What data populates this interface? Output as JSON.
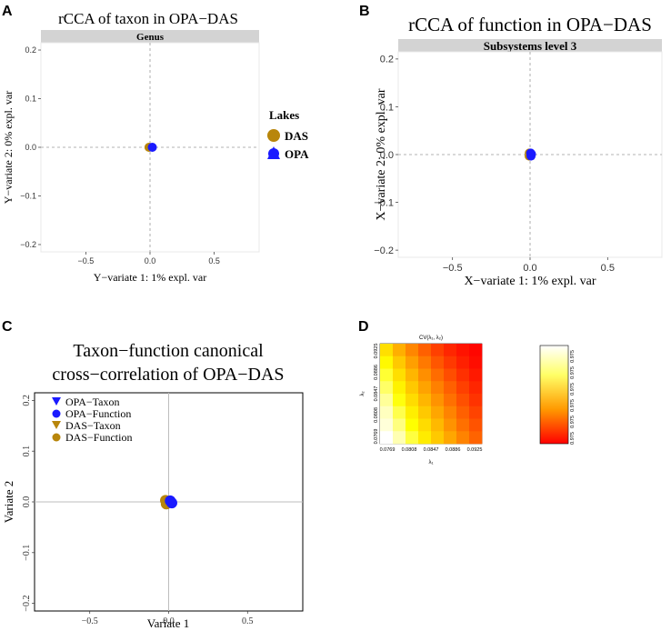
{
  "panels": [
    {
      "letter": "A",
      "type": "scatter",
      "title": "rCCA of taxon in OPA−DAS",
      "strip": "Genus",
      "xlabel": "Y−variate 1: 1% expl. var",
      "ylabel": "Y−variate 2: 0% expl. var",
      "xlim": [
        -0.85,
        0.85
      ],
      "ylim": [
        -0.215,
        0.215
      ],
      "xticks": [
        {
          "v": -0.5,
          "t": "−0.5"
        },
        {
          "v": 0,
          "t": "0.0"
        },
        {
          "v": 0.5,
          "t": "0.5"
        }
      ],
      "yticks": [
        {
          "v": 0.2,
          "t": "0.2"
        },
        {
          "v": 0.1,
          "t": "0.1"
        },
        {
          "v": 0,
          "t": "0.0"
        },
        {
          "v": -0.1,
          "t": "−0.1"
        },
        {
          "v": -0.2,
          "t": "−0.2"
        }
      ],
      "points": [
        {
          "x": -0.008,
          "y": 0.0,
          "series": "DAS",
          "shape": "circle"
        },
        {
          "x": 0.018,
          "y": 0.0,
          "series": "OPA",
          "shape": "circle"
        }
      ],
      "legend": {
        "title": "Lakes",
        "items": [
          {
            "label": "DAS",
            "shape": "circle",
            "color": "#b8860b"
          },
          {
            "label": "OPA",
            "shape": "triangle",
            "color": "#1a1aff"
          }
        ]
      }
    },
    {
      "letter": "B",
      "type": "scatter",
      "title": "rCCA of function in OPA−DAS",
      "strip": "Subsystems level 3",
      "xlabel": "X−variate 1: 1% expl. var",
      "ylabel": "X−variate 2: 0% expl. var",
      "xlim": [
        -0.85,
        0.85
      ],
      "ylim": [
        -0.215,
        0.215
      ],
      "xticks": [
        {
          "v": -0.5,
          "t": "−0.5"
        },
        {
          "v": 0,
          "t": "0.0"
        },
        {
          "v": 0.5,
          "t": "0.5"
        }
      ],
      "yticks": [
        {
          "v": 0.2,
          "t": "0.2"
        },
        {
          "v": 0.1,
          "t": "0.1"
        },
        {
          "v": 0,
          "t": "0.0"
        },
        {
          "v": -0.1,
          "t": "−0.1"
        },
        {
          "v": -0.2,
          "t": "−0.2"
        }
      ],
      "points": [
        {
          "x": -0.005,
          "y": 0.003,
          "series": "DAS",
          "shape": "circle"
        },
        {
          "x": -0.006,
          "y": -0.003,
          "series": "DAS",
          "shape": "circle"
        },
        {
          "x": -0.003,
          "y": 0.0,
          "series": "DAS",
          "shape": "circle"
        },
        {
          "x": 0.004,
          "y": 0.003,
          "series": "OPA",
          "shape": "circle"
        },
        {
          "x": 0.006,
          "y": -0.003,
          "series": "OPA",
          "shape": "circle"
        },
        {
          "x": 0.009,
          "y": 0.001,
          "series": "OPA",
          "shape": "circle"
        }
      ]
    },
    {
      "letter": "C",
      "type": "scatter",
      "title": "Taxon−function canonical",
      "title2": "cross−correlation of OPA−DAS",
      "xlabel": "Variate 1",
      "ylabel": "Variate 2",
      "xlim": [
        -0.85,
        0.85
      ],
      "ylim": [
        -0.215,
        0.215
      ],
      "xticks": [
        {
          "v": -0.5,
          "t": "−0.5"
        },
        {
          "v": 0,
          "t": "0.0"
        },
        {
          "v": 0.5,
          "t": "0.5"
        }
      ],
      "yticks": [
        {
          "v": 0.2,
          "t": "0.2"
        },
        {
          "v": 0.1,
          "t": "0.1"
        },
        {
          "v": 0,
          "t": "0.0"
        },
        {
          "v": -0.1,
          "t": "−0.1"
        },
        {
          "v": -0.2,
          "t": "−0.2"
        }
      ],
      "points": [
        {
          "x": -0.02,
          "y": 0.003,
          "series": "DAS−Taxon",
          "shape": "circle"
        },
        {
          "x": -0.015,
          "y": -0.004,
          "series": "DAS−Function",
          "shape": "circle"
        },
        {
          "x": 0.01,
          "y": 0.002,
          "series": "OPA−Taxon",
          "shape": "circle"
        },
        {
          "x": 0.02,
          "y": -0.002,
          "series": "OPA−Function",
          "shape": "circle"
        }
      ],
      "legend": {
        "items": [
          {
            "label": "OPA−Taxon",
            "shape": "triangle-down",
            "color": "#1a1aff"
          },
          {
            "label": "OPA−Function",
            "shape": "circle",
            "color": "#1a1aff"
          },
          {
            "label": "DAS−Taxon",
            "shape": "triangle-down",
            "color": "#b8860b"
          },
          {
            "label": "DAS−Function",
            "shape": "circle",
            "color": "#b8860b"
          }
        ]
      }
    },
    {
      "letter": "D",
      "type": "heatmap",
      "title": "CV(λ₁, λ₂)",
      "xlabel": "λ₁",
      "ylabel": "λ₂",
      "xticks": [
        "0.0769",
        "0.0808",
        "0.0847",
        "0.0886",
        "0.0925"
      ],
      "yticks": [
        "0.0769",
        "0.0808",
        "0.0847",
        "0.0886",
        "0.0925"
      ],
      "grid": [
        [
          0.7,
          0.55,
          0.42,
          0.3,
          0.2,
          0.12,
          0.06,
          0.02
        ],
        [
          0.78,
          0.63,
          0.5,
          0.38,
          0.27,
          0.18,
          0.1,
          0.04
        ],
        [
          0.84,
          0.7,
          0.57,
          0.45,
          0.34,
          0.24,
          0.15,
          0.08
        ],
        [
          0.88,
          0.76,
          0.63,
          0.51,
          0.4,
          0.3,
          0.2,
          0.12
        ],
        [
          0.92,
          0.81,
          0.69,
          0.57,
          0.46,
          0.35,
          0.25,
          0.16
        ],
        [
          0.95,
          0.86,
          0.75,
          0.63,
          0.52,
          0.41,
          0.3,
          0.21
        ],
        [
          0.97,
          0.9,
          0.8,
          0.69,
          0.58,
          0.46,
          0.35,
          0.26
        ],
        [
          1.0,
          0.94,
          0.85,
          0.74,
          0.63,
          0.52,
          0.41,
          0.31
        ]
      ],
      "colorbar_ticks": [
        "0.975",
        "0.975",
        "0.975",
        "0.975",
        "0.975",
        "0.975"
      ]
    }
  ],
  "colors": {
    "das": "#b8860b",
    "opa": "#1a1aff",
    "strip": "#d3d3d3",
    "panel_bg": "#ffffff"
  }
}
